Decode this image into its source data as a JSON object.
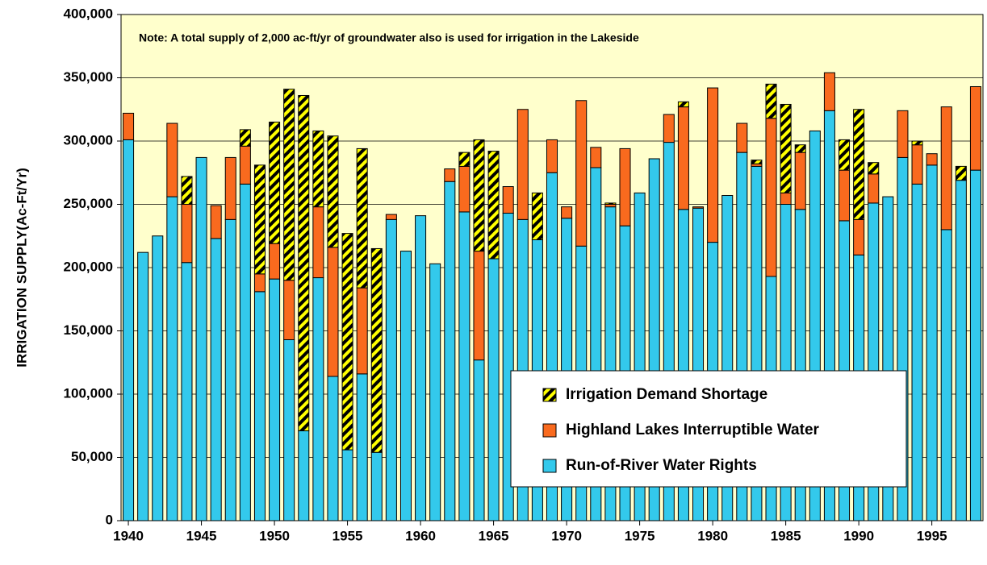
{
  "chart_data": {
    "type": "bar",
    "stacked": true,
    "ylabel": "IRRIGATION SUPPLY(Ac-Ft/Yr)",
    "annotation": "Note:  A total supply of 2,000 ac-ft/yr of groundwater also is used for irrigation in the Lakeside",
    "x": [
      1940,
      1941,
      1942,
      1943,
      1944,
      1945,
      1946,
      1947,
      1948,
      1949,
      1950,
      1951,
      1952,
      1953,
      1954,
      1955,
      1956,
      1957,
      1958,
      1959,
      1960,
      1961,
      1962,
      1963,
      1964,
      1965,
      1966,
      1967,
      1968,
      1969,
      1970,
      1971,
      1972,
      1973,
      1974,
      1975,
      1976,
      1977,
      1978,
      1979,
      1980,
      1981,
      1982,
      1983,
      1984,
      1985,
      1986,
      1987,
      1988,
      1989,
      1990,
      1991,
      1992,
      1993,
      1994,
      1995,
      1996,
      1997,
      1998
    ],
    "series": [
      {
        "name": "Run-of-River Water Rights",
        "color": "#33c9ec",
        "values": [
          301000,
          212000,
          225000,
          256000,
          204000,
          287000,
          223000,
          238000,
          266000,
          181000,
          191000,
          143000,
          71000,
          192000,
          114000,
          56000,
          116000,
          54000,
          238000,
          213000,
          241000,
          203000,
          268000,
          244000,
          127000,
          207000,
          243000,
          238000,
          222000,
          275000,
          239000,
          217000,
          279000,
          248000,
          233000,
          259000,
          286000,
          299000,
          246000,
          247000,
          220000,
          257000,
          291000,
          280000,
          193000,
          250000,
          246000,
          308000,
          324000,
          237000,
          210000,
          251000,
          256000,
          287000,
          266000,
          281000,
          230000,
          269000,
          277000
        ]
      },
      {
        "name": "Highland Lakes Interruptible Water",
        "color": "#f96a1e",
        "values": [
          21000,
          0,
          0,
          58000,
          46000,
          0,
          26000,
          49000,
          30000,
          14000,
          28000,
          47000,
          0,
          56000,
          102000,
          0,
          68000,
          0,
          4000,
          0,
          0,
          0,
          10000,
          36000,
          86000,
          0,
          21000,
          87000,
          0,
          26000,
          9000,
          115000,
          16000,
          2000,
          61000,
          0,
          0,
          22000,
          81000,
          1000,
          122000,
          0,
          23000,
          2000,
          125000,
          9000,
          45000,
          0,
          30000,
          40000,
          28000,
          23000,
          0,
          37000,
          31000,
          9000,
          97000,
          0,
          66000
        ]
      },
      {
        "name": "Irrigation Demand Shortage",
        "color": "#ffff00",
        "hatch": true,
        "values": [
          0,
          0,
          0,
          0,
          22000,
          0,
          0,
          0,
          13000,
          86000,
          96000,
          151000,
          265000,
          60000,
          88000,
          171000,
          110000,
          161000,
          0,
          0,
          0,
          0,
          0,
          11000,
          88000,
          85000,
          0,
          0,
          37000,
          0,
          0,
          0,
          0,
          1000,
          0,
          0,
          0,
          0,
          4000,
          0,
          0,
          0,
          0,
          3000,
          27000,
          70000,
          6000,
          0,
          0,
          24000,
          87000,
          9000,
          0,
          0,
          3000,
          0,
          0,
          11000,
          0
        ]
      }
    ],
    "xlim": [
      1939.5,
      1998.5
    ],
    "xticks": [
      1940,
      1945,
      1950,
      1955,
      1960,
      1965,
      1970,
      1975,
      1980,
      1985,
      1990,
      1995
    ],
    "ylim": [
      0,
      400000
    ],
    "yticks": [
      0,
      {
        "value": 50000,
        "label": "50,000"
      },
      {
        "value": 100000,
        "label": "100,000"
      },
      {
        "value": 150000,
        "label": "150,000"
      },
      {
        "value": 200000,
        "label": "200,000"
      },
      {
        "value": 250000,
        "label": "250,000"
      },
      {
        "value": 300000,
        "label": "300,000"
      },
      {
        "value": 350000,
        "label": "350,000"
      },
      {
        "value": 400000,
        "label": "400,000"
      }
    ],
    "grid": true,
    "legend": "lower right",
    "plot_background": "#ffffcc"
  }
}
